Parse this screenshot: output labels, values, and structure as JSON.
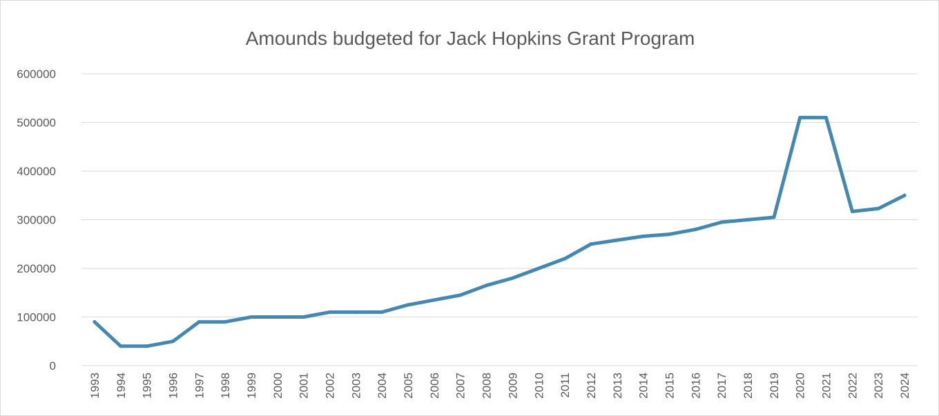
{
  "chart_data": {
    "type": "line",
    "title": "Amounds budgeted for Jack Hopkins Grant Program",
    "xlabel": "",
    "ylabel": "",
    "ylim": [
      0,
      600000
    ],
    "yticks": [
      "0",
      "100000",
      "200000",
      "300000",
      "400000",
      "500000",
      "600000"
    ],
    "grid": true,
    "legend": "none",
    "categories": [
      "1993",
      "1994",
      "1995",
      "1996",
      "1997",
      "1998",
      "1999",
      "2000",
      "2001",
      "2002",
      "2003",
      "2004",
      "2005",
      "2006",
      "2007",
      "2008",
      "2009",
      "2010",
      "2011",
      "2012",
      "2013",
      "2014",
      "2015",
      "2016",
      "2017",
      "2018",
      "2019",
      "2020",
      "2021",
      "2022",
      "2023",
      "2024"
    ],
    "series": [
      {
        "color": "#4288B0",
        "values": [
          90000,
          40000,
          40000,
          50000,
          90000,
          90000,
          100000,
          100000,
          100000,
          110000,
          110000,
          110000,
          125000,
          135000,
          145000,
          165000,
          180000,
          200000,
          220000,
          250000,
          258000,
          266000,
          270000,
          280000,
          295000,
          300000,
          305000,
          510000,
          510000,
          317000,
          323000,
          350000
        ]
      }
    ]
  }
}
